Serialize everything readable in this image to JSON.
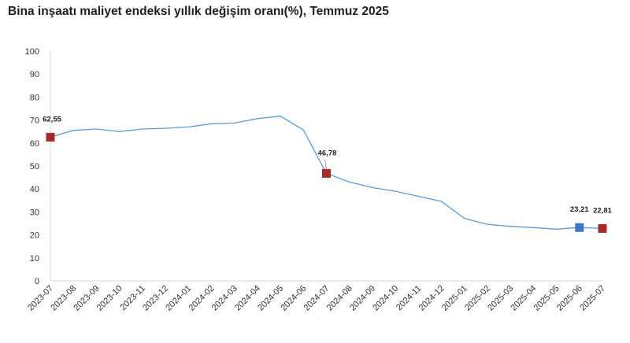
{
  "chart_data": {
    "type": "line",
    "title": "Bina inşaatı maliyet endeksi yıllık değişim oranı(%), Temmuz 2025",
    "xlabel": "",
    "ylabel": "",
    "ylim": [
      0,
      100
    ],
    "yticks": [
      0,
      10,
      20,
      30,
      40,
      50,
      60,
      70,
      80,
      90,
      100
    ],
    "grid": false,
    "categories": [
      "2023-07",
      "2023-08",
      "2023-09",
      "2023-10",
      "2023-11",
      "2023-12",
      "2024-01",
      "2024-02",
      "2024-03",
      "2024-04",
      "2024-05",
      "2024-06",
      "2024-07",
      "2024-08",
      "2024-09",
      "2024-10",
      "2024-11",
      "2024-12",
      "2025-01",
      "2025-02",
      "2025-03",
      "2025-04",
      "2025-05",
      "2025-06",
      "2025-07"
    ],
    "series": [
      {
        "values": [
          62.55,
          65.5,
          66.1,
          65.0,
          66.1,
          66.4,
          67.0,
          68.4,
          68.7,
          70.6,
          71.7,
          65.7,
          46.78,
          43.0,
          40.6,
          39.0,
          36.8,
          34.6,
          27.2,
          24.6,
          23.7,
          23.2,
          22.5,
          23.21,
          22.81
        ],
        "color": "#5b9bd5"
      }
    ],
    "markers": [
      {
        "index": 0,
        "label": "62,55",
        "color": "#a52a2a"
      },
      {
        "index": 12,
        "label": "46,78",
        "color": "#a52a2a"
      },
      {
        "index": 23,
        "label": "23,21",
        "color": "#3d78c0"
      },
      {
        "index": 24,
        "label": "22,81",
        "color": "#a52a2a"
      }
    ]
  }
}
